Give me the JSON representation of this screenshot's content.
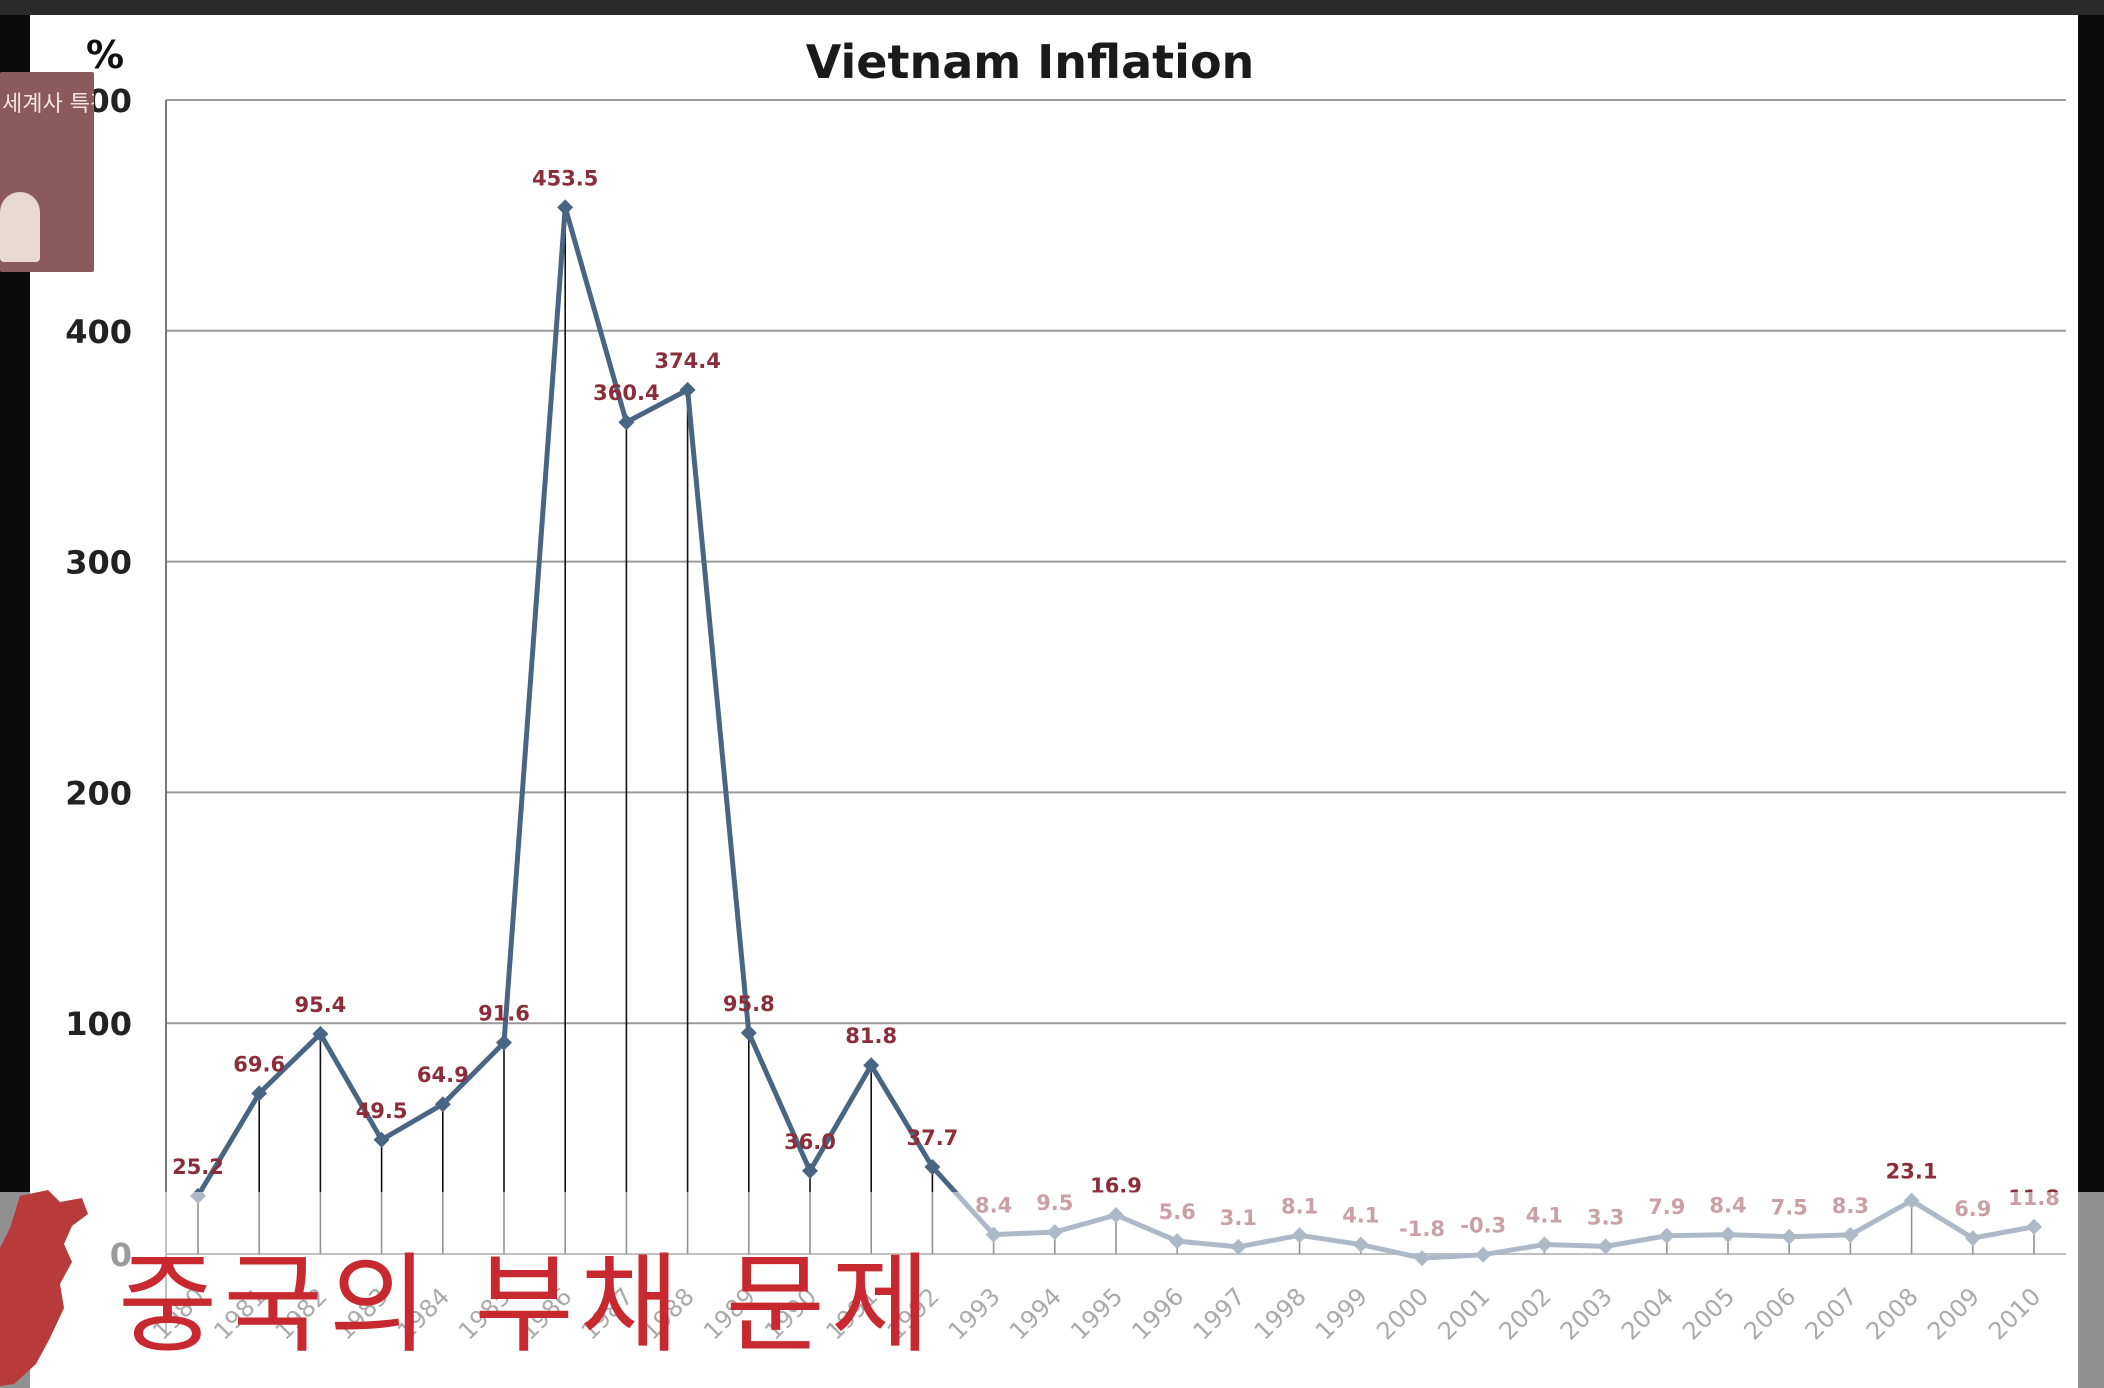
{
  "chart_data": {
    "type": "line",
    "title": "Vietnam Inflation",
    "unit_label": "%",
    "ylim": [
      0,
      500
    ],
    "yticks": [
      "0",
      "100",
      "200",
      "300",
      "400",
      "500"
    ],
    "categories": [
      "1980",
      "1981",
      "1982",
      "1983",
      "1984",
      "1985",
      "1986",
      "1987",
      "1988",
      "1989",
      "1990",
      "1991",
      "1992",
      "1993",
      "1994",
      "1995",
      "1996",
      "1997",
      "1998",
      "1999",
      "2000",
      "2001",
      "2002",
      "2003",
      "2004",
      "2005",
      "2006",
      "2007",
      "2008",
      "2009",
      "2010"
    ],
    "values": [
      25.2,
      69.6,
      95.4,
      49.5,
      64.9,
      91.6,
      453.5,
      360.4,
      374.4,
      95.8,
      36.0,
      81.8,
      37.7,
      8.4,
      9.5,
      16.9,
      5.6,
      3.1,
      8.1,
      4.1,
      -1.8,
      -0.3,
      4.1,
      3.3,
      7.9,
      8.4,
      7.5,
      8.3,
      23.1,
      6.9,
      11.8
    ],
    "grid": true,
    "series_color": "#4a6584",
    "label_color": "#8b2e3a"
  },
  "logo": {
    "text": "세계사 특강"
  },
  "caption": {
    "text": "중국의 부채 문제",
    "color": "#c8282f"
  }
}
